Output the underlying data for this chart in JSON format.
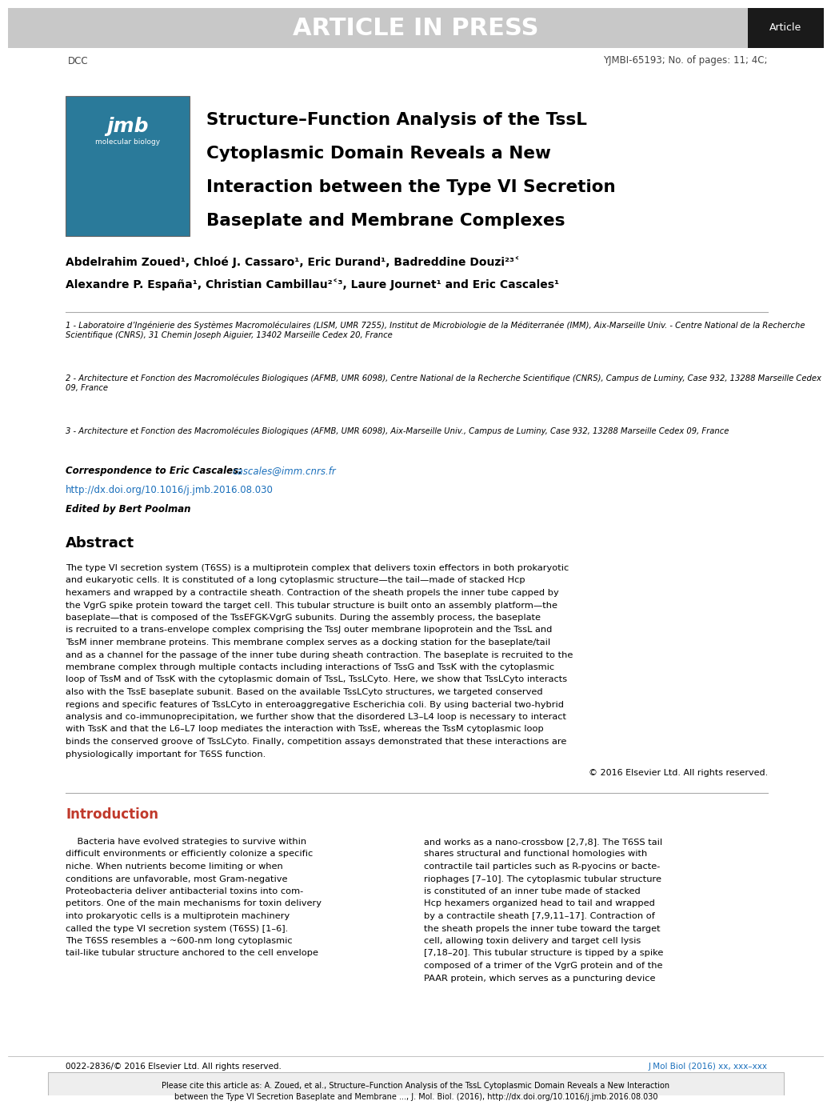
{
  "header_bg": "#c8c8c8",
  "header_text": "ARTICLE IN PRESS",
  "header_text_color": "#ffffff",
  "article_badge_bg": "#1a1a1a",
  "article_badge_text": "Article",
  "article_badge_text_color": "#ffffff",
  "dcc_text": "DCC",
  "journal_ref": "YJMBI-65193; No. of pages: 11; 4C;",
  "title_line1": "Structure–Function Analysis of the TssL",
  "title_line2": "Cytoplasmic Domain Reveals a New",
  "title_line3": "Interaction between the Type VI Secretion",
  "title_line4": "Baseplate and Membrane Complexes",
  "authors_line1": "Abdelrahim Zoued¹, Chloé J. Cassaro¹, Eric Durand¹, Badreddine Douzi²³˂",
  "authors_line2": "Alexandre P. España¹, Christian Cambillau²˂³, Laure Journet¹ and Eric Cascales¹",
  "affil1": "1 - Laboratoire d’Ingénierie des Systèmes Macromoléculaires (LISM, UMR 7255), Institut de Microbiologie de la Méditerranée (IMM), Aix-Marseille Univ. - Centre National de la Recherche Scientifique (CNRS), 31 Chemin Joseph Aiguier, 13402 Marseille Cedex 20, France",
  "affil2": "2 - Architecture et Fonction des Macromolécules Biologiques (AFMB, UMR 6098), Centre National de la Recherche Scientifique (CNRS), Campus de Luminy, Case 932, 13288 Marseille Cedex 09, France",
  "affil3": "3 - Architecture et Fonction des Macromolécules Biologiques (AFMB, UMR 6098), Aix-Marseille Univ., Campus de Luminy, Case 932, 13288 Marseille Cedex 09, France",
  "correspondence_label": "Correspondence to Eric Cascales: ",
  "correspondence_email": "cascales@imm.cnrs.fr",
  "doi": "http://dx.doi.org/10.1016/j.jmb.2016.08.030",
  "edited_by": "Edited by Bert Poolman",
  "abstract_title": "Abstract",
  "abstract_text_lines": [
    "The type VI secretion system (T6SS) is a multiprotein complex that delivers toxin effectors in both prokaryotic",
    "and eukaryotic cells. It is constituted of a long cytoplasmic structure—the tail—made of stacked Hcp",
    "hexamers and wrapped by a contractile sheath. Contraction of the sheath propels the inner tube capped by",
    "the VgrG spike protein toward the target cell. This tubular structure is built onto an assembly platform—the",
    "baseplate—that is composed of the TssEFGK-VgrG subunits. During the assembly process, the baseplate",
    "is recruited to a trans-envelope complex comprising the TssJ outer membrane lipoprotein and the TssL and",
    "TssM inner membrane proteins. This membrane complex serves as a docking station for the baseplate/tail",
    "and as a channel for the passage of the inner tube during sheath contraction. The baseplate is recruited to the",
    "membrane complex through multiple contacts including interactions of TssG and TssK with the cytoplasmic",
    "loop of TssM and of TssK with the cytoplasmic domain of TssL, TssLCyto. Here, we show that TssLCyto interacts",
    "also with the TssE baseplate subunit. Based on the available TssLCyto structures, we targeted conserved",
    "regions and specific features of TssLCyto in enteroaggregative Escherichia coli. By using bacterial two-hybrid",
    "analysis and co-immunoprecipitation, we further show that the disordered L3–L4 loop is necessary to interact",
    "with TssK and that the L6–L7 loop mediates the interaction with TssE, whereas the TssM cytoplasmic loop",
    "binds the conserved groove of TssLCyto. Finally, competition assays demonstrated that these interactions are",
    "physiologically important for T6SS function."
  ],
  "copyright": "© 2016 Elsevier Ltd. All rights reserved.",
  "intro_title": "Introduction",
  "intro_col1_lines": [
    "    Bacteria have evolved strategies to survive within",
    "difficult environments or efficiently colonize a specific",
    "niche. When nutrients become limiting or when",
    "conditions are unfavorable, most Gram-negative",
    "Proteobacteria deliver antibacterial toxins into com-",
    "petitors. One of the main mechanisms for toxin delivery",
    "into prokaryotic cells is a multiprotein machinery",
    "called the type VI secretion system (T6SS) [1–6].",
    "The T6SS resembles a ~600-nm long cytoplasmic",
    "tail-like tubular structure anchored to the cell envelope"
  ],
  "intro_col2_lines": [
    "and works as a nano-crossbow [2,7,8]. The T6SS tail",
    "shares structural and functional homologies with",
    "contractile tail particles such as R-pyocins or bacte-",
    "riophages [7–10]. The cytoplasmic tubular structure",
    "is constituted of an inner tube made of stacked",
    "Hcp hexamers organized head to tail and wrapped",
    "by a contractile sheath [7,9,11–17]. Contraction of",
    "the sheath propels the inner tube toward the target",
    "cell, allowing toxin delivery and target cell lysis",
    "[7,18–20]. This tubular structure is tipped by a spike",
    "composed of a trimer of the VgrG protein and of the",
    "PAAR protein, which serves as a puncturing device"
  ],
  "footer_issn": "0022-2836/© 2016 Elsevier Ltd. All rights reserved.",
  "footer_journal": "J Mol Biol (2016) xx, xxx–xxx",
  "cite_text_line1": "Please cite this article as: A. Zoued, et al., Structure–Function Analysis of the TssL Cytoplasmic Domain Reveals a New Interaction",
  "cite_text_line2": "between the Type VI Secretion Baseplate and Membrane ..., J. Mol. Biol. (2016), http://dx.doi.org/10.1016/j.jmb.2016.08.030",
  "bg_color": "#ffffff",
  "text_color": "#000000",
  "link_color": "#1a6fbb",
  "intro_title_color": "#c0392b"
}
